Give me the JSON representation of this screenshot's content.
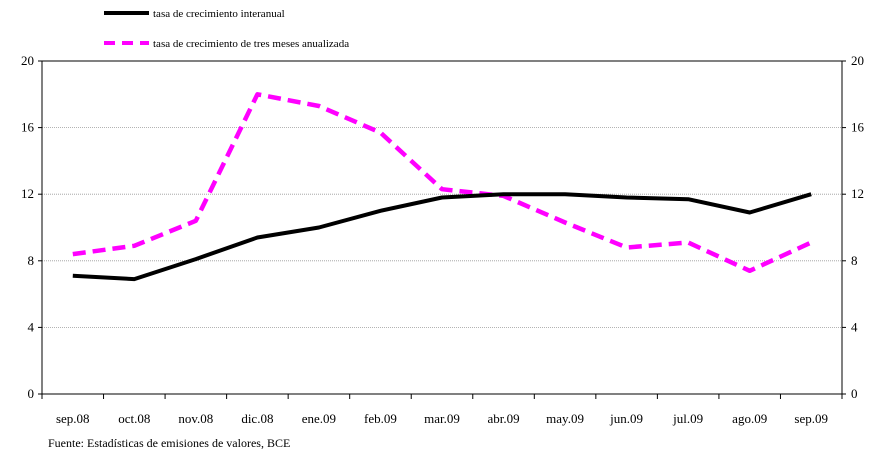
{
  "chart_data": {
    "type": "line",
    "categories": [
      "sep.08",
      "oct.08",
      "nov.08",
      "dic.08",
      "ene.09",
      "feb.09",
      "mar.09",
      "abr.09",
      "may.09",
      "jun.09",
      "jul.09",
      "ago.09",
      "sep.09"
    ],
    "series": [
      {
        "name": "tasa de crecimiento interanual",
        "values": [
          7.1,
          6.9,
          8.1,
          9.4,
          10.0,
          11.0,
          11.8,
          12.0,
          12.0,
          11.8,
          11.7,
          10.9,
          12.0
        ],
        "color": "#000000",
        "style": "solid"
      },
      {
        "name": "tasa de crecimiento de tres meses anualizada",
        "values": [
          8.4,
          8.9,
          10.4,
          18.0,
          17.3,
          15.7,
          12.3,
          11.9,
          10.3,
          8.8,
          9.1,
          7.4,
          9.1
        ],
        "color": "#ff00ff",
        "style": "dashed"
      }
    ],
    "ylim": [
      0,
      20
    ],
    "yticks": [
      0,
      4,
      8,
      12,
      16,
      20
    ],
    "y_axis_sides": "left and right",
    "grid": true,
    "legend_position": "top-left",
    "source": "Fuente: Estadísticas de emisiones de valores, BCE"
  }
}
